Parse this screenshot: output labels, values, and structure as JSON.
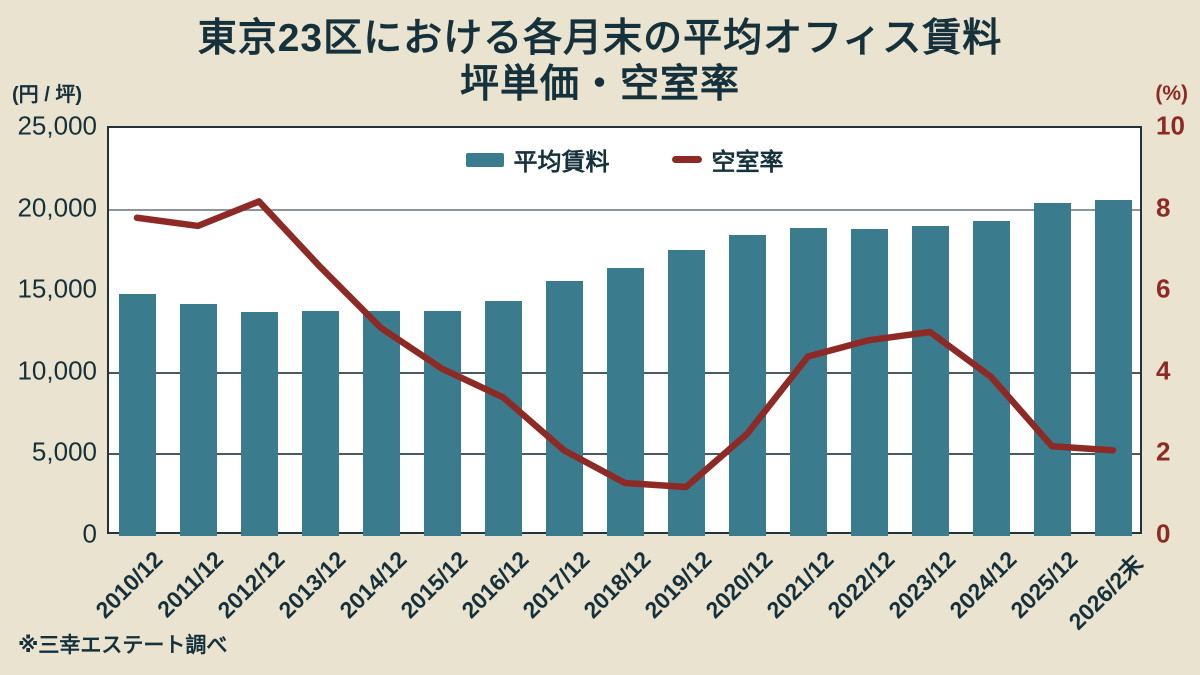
{
  "title": {
    "line1": "東京23区における各月末の平均オフィス賃料",
    "line2": "坪単価・空室率"
  },
  "axes": {
    "left_unit": "(円 / 坪)",
    "right_unit": "(%)",
    "left_ticks": [
      "25,000",
      "20,000",
      "15,000",
      "10,000",
      "5,000",
      "0"
    ],
    "right_ticks": [
      "10",
      "8",
      "6",
      "4",
      "2",
      "0"
    ]
  },
  "legend": {
    "bar_label": "平均賃料",
    "line_label": "空室率"
  },
  "footer": {
    "source": "※三幸エステート調べ"
  },
  "colors": {
    "background": "#eae3d0",
    "plot_bg": "#ffffff",
    "plot_border": "#22333c",
    "bar": "#3a7c8d",
    "line": "#8e2a26",
    "text_dark": "#15313c",
    "text_red": "#8e2a26",
    "grid_light": "#8e9499",
    "grid_dark": "#4a5960"
  },
  "chart_data": {
    "type": "bar+line combo",
    "title": "東京23区における各月末の平均オフィス賃料 坪単価・空室率",
    "categories": [
      "2010/12",
      "2011/12",
      "2012/12",
      "2013/12",
      "2014/12",
      "2015/12",
      "2016/12",
      "2017/12",
      "2018/12",
      "2019/12",
      "2020/12",
      "2021/12",
      "2022/12",
      "2023/12",
      "2024/12",
      "2025/12",
      "2026/2末"
    ],
    "series": [
      {
        "name": "平均賃料",
        "type": "bar",
        "axis": "left",
        "unit": "円/坪",
        "values": [
          14850,
          14200,
          13750,
          13800,
          13800,
          13800,
          14400,
          15600,
          16400,
          17550,
          18450,
          18900,
          18800,
          19000,
          19300,
          20400,
          20600
        ]
      },
      {
        "name": "空室率",
        "type": "line",
        "axis": "right",
        "unit": "%",
        "values": [
          7.8,
          7.6,
          8.2,
          6.6,
          5.1,
          4.1,
          3.4,
          2.1,
          1.3,
          1.2,
          2.5,
          4.4,
          4.8,
          5.0,
          3.9,
          2.2,
          2.1
        ]
      }
    ],
    "left_axis": {
      "label": "(円 / 坪)",
      "range": [
        0,
        25000
      ],
      "tick_step": 5000
    },
    "right_axis": {
      "label": "(%)",
      "range": [
        0,
        10
      ],
      "tick_step": 2
    },
    "gridlines": [
      {
        "left_value": 20000,
        "shade": "light"
      },
      {
        "left_value": 10000,
        "shade": "dark"
      },
      {
        "left_value": 5000,
        "shade": "dark"
      }
    ],
    "legend_position": "top-center-inside",
    "source_note": "※三幸エステート調べ"
  }
}
